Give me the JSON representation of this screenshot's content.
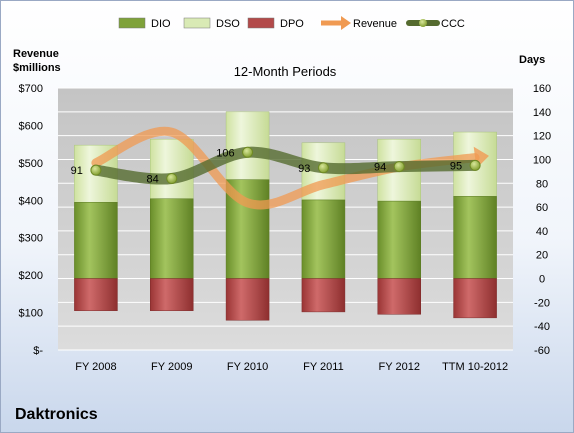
{
  "company": "Daktronics",
  "chart_data": {
    "type": "bar",
    "title": "12-Month Periods",
    "left_axis_label": [
      "Revenue",
      "$millions"
    ],
    "right_axis_label": "Days",
    "categories": [
      "FY 2008",
      "FY 2009",
      "FY 2010",
      "FY 2011",
      "FY 2012",
      "TTM 10-2012"
    ],
    "left_axis": {
      "min": 0,
      "max": 700,
      "step": 100,
      "tick_labels": [
        "$-",
        "$100",
        "$200",
        "$300",
        "$400",
        "$500",
        "$600",
        "$700"
      ]
    },
    "right_axis": {
      "min": -60,
      "max": 160,
      "step": 20,
      "tick_labels": [
        "-60",
        "-40",
        "-20",
        "0",
        "20",
        "40",
        "60",
        "80",
        "100",
        "120",
        "140",
        "160"
      ]
    },
    "legend": {
      "position": "top",
      "items": [
        {
          "name": "DIO",
          "kind": "bar",
          "color": "#7fa23a"
        },
        {
          "name": "DSO",
          "kind": "bar",
          "color": "#d9eab5"
        },
        {
          "name": "DPO",
          "kind": "bar",
          "color": "#b34a4a"
        },
        {
          "name": "Revenue",
          "kind": "arrow",
          "color": "#f09a52"
        },
        {
          "name": "CCC",
          "kind": "line",
          "color": "#556b2f"
        }
      ]
    },
    "series": [
      {
        "name": "DIO",
        "axis": "right",
        "values": [
          64,
          67,
          83,
          66,
          65,
          69
        ]
      },
      {
        "name": "DSO",
        "axis": "right",
        "values": [
          48,
          50,
          57,
          48,
          52,
          54
        ]
      },
      {
        "name": "DPO",
        "axis": "right",
        "values": [
          -27,
          -27,
          -35,
          -28,
          -30,
          -33
        ]
      },
      {
        "name": "Revenue",
        "axis": "left",
        "values": [
          500,
          582,
          393,
          442,
          489,
          514
        ]
      },
      {
        "name": "CCC",
        "axis": "right",
        "values": [
          91,
          84,
          106,
          93,
          94,
          95
        ]
      }
    ],
    "data_labels": [
      "91",
      "84",
      "106",
      "93",
      "94",
      "95"
    ],
    "grid": true
  }
}
